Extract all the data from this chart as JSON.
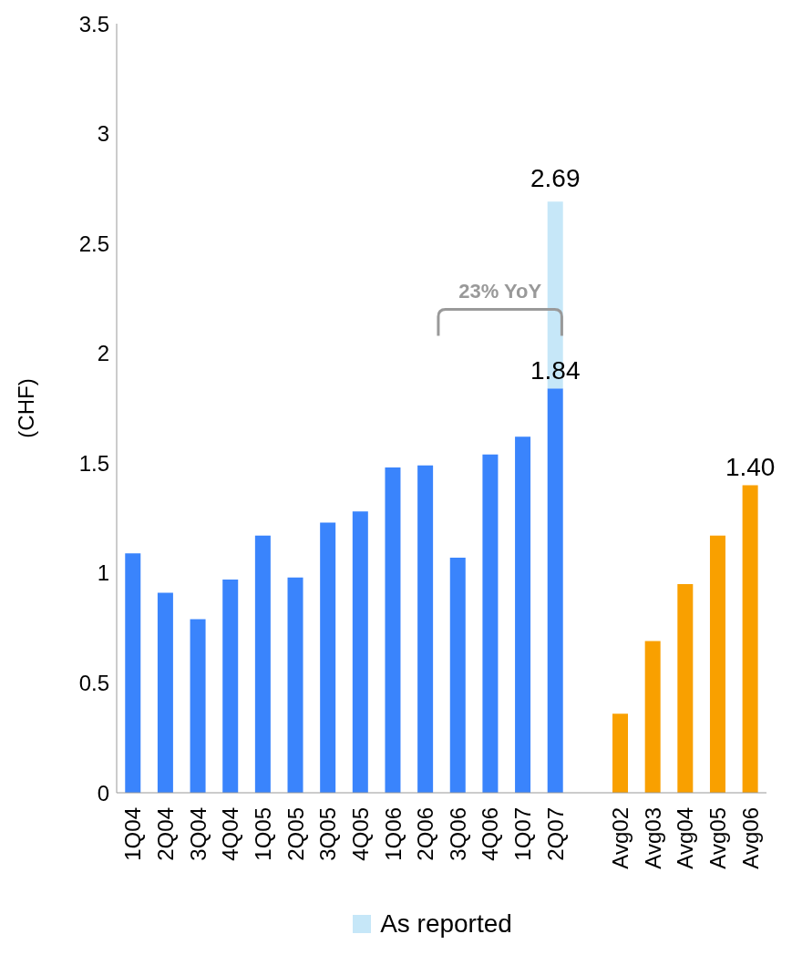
{
  "chart_data": {
    "type": "bar",
    "stacked": true,
    "ylabel": "(CHF)",
    "categories": [
      "1Q04",
      "2Q04",
      "3Q04",
      "4Q04",
      "1Q05",
      "2Q05",
      "3Q05",
      "4Q05",
      "1Q06",
      "2Q06",
      "3Q06",
      "4Q06",
      "1Q07",
      "2Q07",
      null,
      "Avg02",
      "Avg03",
      "Avg04",
      "Avg05",
      "Avg06"
    ],
    "series": [
      {
        "colors": [
          "#3a84fc",
          "#3a84fc",
          "#3a84fc",
          "#3a84fc",
          "#3a84fc",
          "#3a84fc",
          "#3a84fc",
          "#3a84fc",
          "#3a84fc",
          "#3a84fc",
          "#3a84fc",
          "#3a84fc",
          "#3a84fc",
          "#3a84fc",
          "#3a84fc",
          "#f9a000",
          "#f9a000",
          "#f9a000",
          "#f9a000",
          "#f9a000"
        ],
        "values": [
          1.09,
          0.91,
          0.79,
          0.97,
          1.17,
          0.98,
          1.23,
          1.28,
          1.48,
          1.49,
          1.07,
          1.54,
          1.62,
          1.84,
          null,
          0.36,
          0.69,
          0.95,
          1.17,
          1.4
        ],
        "value_labels": [
          null,
          null,
          null,
          null,
          null,
          null,
          null,
          null,
          null,
          null,
          null,
          null,
          null,
          "1.84",
          null,
          null,
          null,
          null,
          null,
          "1.40"
        ]
      },
      {
        "name": "As reported",
        "color": "#c6e7f8",
        "values": [
          null,
          null,
          null,
          null,
          null,
          null,
          null,
          null,
          null,
          null,
          null,
          null,
          null,
          0.85,
          null,
          null,
          null,
          null,
          null,
          null
        ]
      }
    ],
    "totals": [
      null,
      null,
      null,
      null,
      null,
      null,
      null,
      null,
      null,
      null,
      null,
      null,
      null,
      "2.69",
      null,
      null,
      null,
      null,
      null,
      null
    ],
    "ylim": [
      0,
      3.5
    ],
    "yticks": [
      0,
      0.5,
      1,
      1.5,
      2,
      2.5,
      3,
      3.5
    ],
    "grid": false,
    "legend": "bottom",
    "annotations": [
      "23% YoY"
    ]
  }
}
